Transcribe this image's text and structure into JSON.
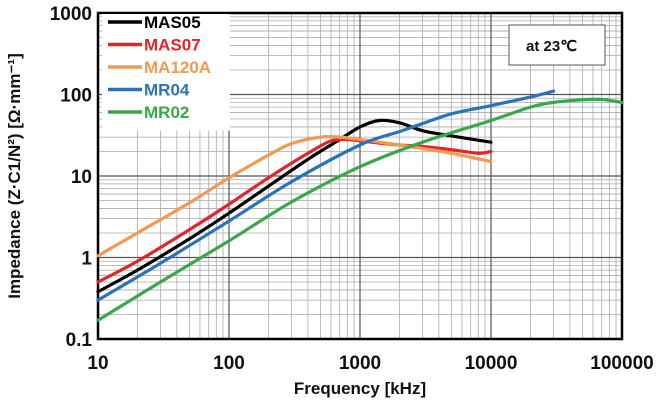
{
  "chart_data": {
    "type": "line",
    "title": "",
    "xlabel": "Frequency [kHz]",
    "ylabel": "Impedance (Z·C1/N²) [Ω·mm⁻¹]",
    "xscale": "log",
    "yscale": "log",
    "xlim": [
      10,
      100000
    ],
    "ylim": [
      0.1,
      1000
    ],
    "x_ticks": [
      "10",
      "100",
      "1000",
      "10000",
      "100000"
    ],
    "y_ticks": [
      "0.1",
      "1",
      "10",
      "100",
      "1000"
    ],
    "grid": true,
    "legend_position": "top-left",
    "annotation": "at 23℃",
    "series": [
      {
        "name": "MAS05",
        "color": "#000000",
        "x": [
          10,
          20,
          50,
          100,
          200,
          400,
          700,
          1000,
          1400,
          2000,
          3000,
          5000,
          10000
        ],
        "y": [
          0.38,
          0.7,
          1.7,
          3.5,
          7.5,
          16,
          28,
          40,
          48,
          45,
          36,
          31,
          26
        ]
      },
      {
        "name": "MAS07",
        "color": "#e0262b",
        "x": [
          10,
          20,
          50,
          100,
          200,
          400,
          600,
          800,
          1000,
          1500,
          2000,
          3000,
          5000,
          8000,
          10000
        ],
        "y": [
          0.5,
          0.9,
          2.2,
          4.5,
          9.5,
          19,
          27,
          28,
          27,
          25,
          24,
          23,
          21,
          19,
          20
        ]
      },
      {
        "name": "MA120A",
        "color": "#f09a52",
        "x": [
          10,
          20,
          50,
          100,
          200,
          300,
          500,
          700,
          1000,
          2000,
          5000,
          10000
        ],
        "y": [
          1.05,
          2,
          4.7,
          9.5,
          18,
          25,
          30,
          30,
          28,
          24,
          19,
          15
        ]
      },
      {
        "name": "MR04",
        "color": "#2a72b9",
        "x": [
          10,
          30,
          100,
          300,
          1000,
          2000,
          3000,
          5000,
          10000,
          20000,
          30000
        ],
        "y": [
          0.3,
          0.85,
          2.8,
          8.5,
          24,
          35,
          44,
          58,
          73,
          93,
          110
        ]
      },
      {
        "name": "MR02",
        "color": "#3aa74a",
        "x": [
          10,
          30,
          100,
          300,
          1000,
          3000,
          10000,
          20000,
          30000,
          50000,
          70000,
          100000
        ],
        "y": [
          0.17,
          0.5,
          1.6,
          4.8,
          13,
          26,
          48,
          70,
          80,
          86,
          87,
          80
        ]
      }
    ]
  }
}
